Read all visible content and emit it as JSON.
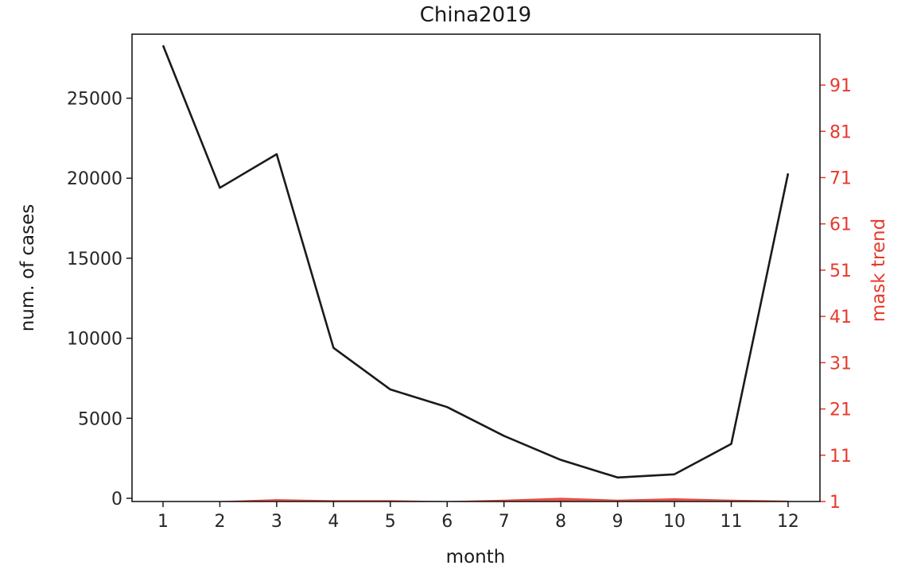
{
  "chart_data": {
    "type": "line",
    "title": "China2019",
    "xlabel": "month",
    "ylabel": "num. of cases",
    "y2label": "mask trend",
    "x": [
      1,
      2,
      3,
      4,
      5,
      6,
      7,
      8,
      9,
      10,
      11,
      12
    ],
    "x_ticks": [
      "1",
      "2",
      "3",
      "4",
      "5",
      "6",
      "7",
      "8",
      "9",
      "10",
      "11",
      "12"
    ],
    "ylim": [
      -200,
      29000
    ],
    "y_ticks": [
      0,
      5000,
      10000,
      15000,
      20000,
      25000
    ],
    "y_tick_labels": [
      "0",
      "5000",
      "10000",
      "15000",
      "20000",
      "25000"
    ],
    "y2lim": [
      1,
      102
    ],
    "y2_ticks": [
      1,
      11,
      21,
      31,
      41,
      51,
      61,
      71,
      81,
      91
    ],
    "y2_tick_labels": [
      "1",
      "11",
      "21",
      "31",
      "41",
      "51",
      "61",
      "71",
      "81",
      "91"
    ],
    "grid": false,
    "series": [
      {
        "axis": "left",
        "color": "#1a1a1a",
        "values": [
          28300,
          19400,
          21500,
          9400,
          6800,
          5700,
          3900,
          2400,
          1300,
          1500,
          3400,
          20300
        ]
      },
      {
        "axis": "right",
        "color": "#e8392c",
        "fill": true,
        "values": [
          1,
          1,
          1.4,
          1.2,
          1.2,
          1,
          1.3,
          1.7,
          1.3,
          1.6,
          1.3,
          1.1
        ]
      }
    ]
  }
}
